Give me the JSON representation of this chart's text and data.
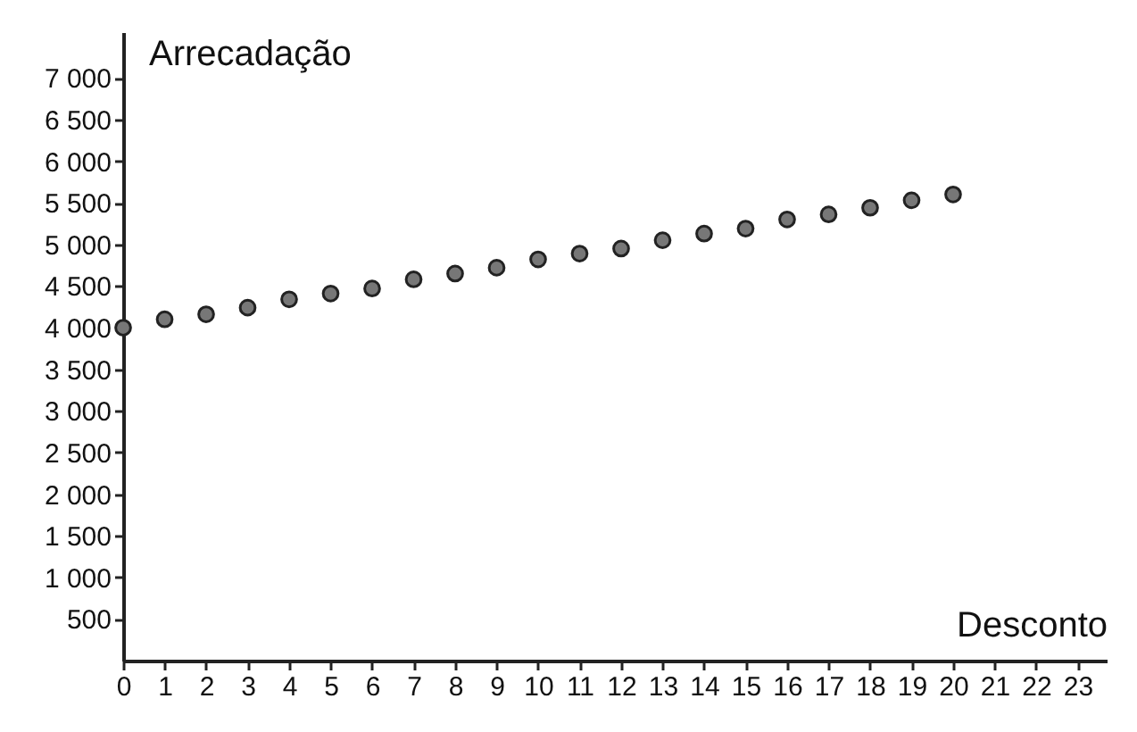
{
  "chart_data": {
    "type": "scatter",
    "xlabel": "Desconto",
    "ylabel": "Arrecadação",
    "x": [
      0,
      1,
      2,
      3,
      4,
      5,
      6,
      7,
      8,
      9,
      10,
      11,
      12,
      13,
      14,
      15,
      16,
      17,
      18,
      19,
      20
    ],
    "series": [
      {
        "color": "#777777",
        "values": [
          4000,
          4100,
          4160,
          4240,
          4340,
          4410,
          4470,
          4580,
          4650,
          4720,
          4820,
          4890,
          4950,
          5050,
          5130,
          5190,
          5300,
          5360,
          5440,
          5530,
          5600
        ]
      }
    ],
    "xlim": [
      0,
      23.7
    ],
    "ylim": [
      0,
      7550
    ],
    "xticks": [
      0,
      1,
      2,
      3,
      4,
      5,
      6,
      7,
      8,
      9,
      10,
      11,
      12,
      13,
      14,
      15,
      16,
      17,
      18,
      19,
      20,
      21,
      22,
      23
    ],
    "yticks": [
      {
        "value": 500,
        "label": "500"
      },
      {
        "value": 1000,
        "label": "1 000"
      },
      {
        "value": 1500,
        "label": "1 500"
      },
      {
        "value": 2000,
        "label": "2 000"
      },
      {
        "value": 2500,
        "label": "2 500"
      },
      {
        "value": 3000,
        "label": "3 000"
      },
      {
        "value": 3500,
        "label": "3 500"
      },
      {
        "value": 4000,
        "label": "4 000"
      },
      {
        "value": 4500,
        "label": "4 500"
      },
      {
        "value": 5000,
        "label": "5 000"
      },
      {
        "value": 5500,
        "label": "5 500"
      },
      {
        "value": 6000,
        "label": "6 000"
      },
      {
        "value": 6500,
        "label": "6 500"
      },
      {
        "value": 7000,
        "label": "7 000"
      }
    ],
    "grid": false,
    "marker": "circle"
  }
}
